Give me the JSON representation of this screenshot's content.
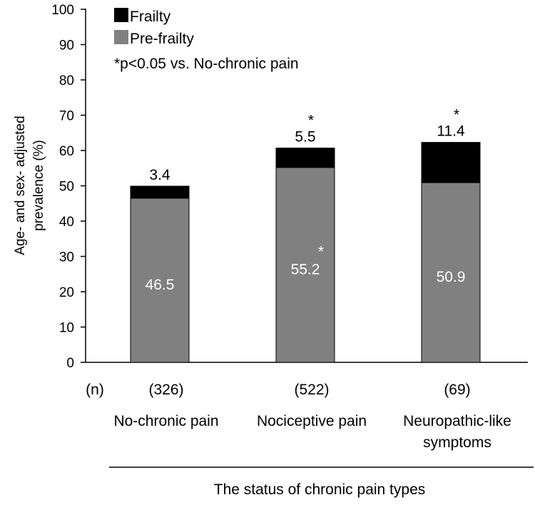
{
  "chart_data": {
    "type": "stacked-bar",
    "title": "",
    "ylabel_lines": [
      "Age- and sex- adjusted",
      "prevalence (%)"
    ],
    "xlabel": "The status of chronic pain types",
    "ylim": [
      0,
      100
    ],
    "yticks": [
      0,
      10,
      20,
      30,
      40,
      50,
      60,
      70,
      80,
      90,
      100
    ],
    "n_header": "(n)",
    "categories": [
      {
        "name_lines": [
          "No-chronic pain"
        ],
        "n": "(326)"
      },
      {
        "name_lines": [
          "Nociceptive pain"
        ],
        "n": "(522)"
      },
      {
        "name_lines": [
          "Neuropathic-like",
          "symptoms"
        ],
        "n": "(69)"
      }
    ],
    "series": [
      {
        "name": "Pre-frailty",
        "color": "#808080",
        "values": [
          46.5,
          55.2,
          50.9
        ],
        "labels": [
          "46.5",
          "55.2",
          "50.9"
        ],
        "label_color": "#ffffff",
        "significant": [
          false,
          true,
          false
        ]
      },
      {
        "name": "Frailty",
        "color": "#000000",
        "values": [
          3.4,
          5.5,
          11.4
        ],
        "labels": [
          "3.4",
          "5.5",
          "11.4"
        ],
        "label_color": "#000000",
        "significant": [
          false,
          true,
          true
        ]
      }
    ],
    "significance_marker": "*",
    "legend": {
      "position": "top-left",
      "note": "*p<0.05 vs. No-chronic pain"
    }
  }
}
